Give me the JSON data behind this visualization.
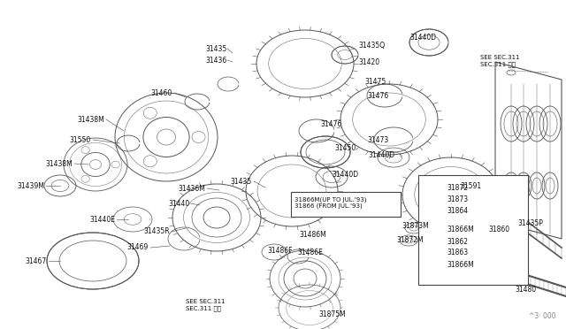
{
  "bg_color": "#ffffff",
  "line_color": "#333333",
  "text_color": "#111111",
  "gear_color": "#555555",
  "watermark": "^3· 000",
  "box_label": "31866M(UP TO JUL.'93)\n31866 (FROM JUL.'93)",
  "see_sec1": "SEE SEC.311\nSEC.311 参照",
  "see_sec2": "SEE SEC.311\nSEC.311 参照"
}
